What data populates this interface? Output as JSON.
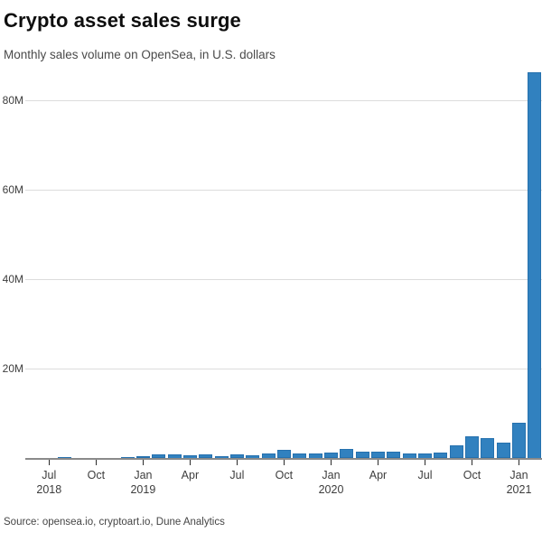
{
  "header": {
    "title": "Crypto asset sales surge",
    "subtitle": "Monthly sales volume on OpenSea, in U.S. dollars"
  },
  "footer": {
    "source": "Source: opensea.io, cryptoart.io, Dune Analytics"
  },
  "colors": {
    "bar_fill": "#3181bf",
    "bar_edge": "#2671ae",
    "gridline": "#dcdcdc",
    "axis_line": "#8a8a8a",
    "text": "#3d3d3d"
  },
  "chart_data": {
    "type": "bar",
    "title": "Crypto asset sales surge",
    "subtitle": "Monthly sales volume on OpenSea, in U.S. dollars",
    "source": "Source: opensea.io, cryptoart.io, Dune Analytics",
    "unit": "millions of U.S. dollars",
    "grid": true,
    "legend": false,
    "ylim": [
      0,
      88
    ],
    "x": [
      "Jun 2018",
      "Jul 2018",
      "Aug 2018",
      "Sep 2018",
      "Oct 2018",
      "Nov 2018",
      "Dec 2018",
      "Jan 2019",
      "Feb 2019",
      "Mar 2019",
      "Apr 2019",
      "May 2019",
      "Jun 2019",
      "Jul 2019",
      "Aug 2019",
      "Sep 2019",
      "Oct 2019",
      "Nov 2019",
      "Dec 2019",
      "Jan 2020",
      "Feb 2020",
      "Mar 2020",
      "Apr 2020",
      "May 2020",
      "Jun 2020",
      "Jul 2020",
      "Aug 2020",
      "Sep 2020",
      "Oct 2020",
      "Nov 2020",
      "Dec 2020",
      "Jan 2021",
      "Feb 2021"
    ],
    "values": [
      0.05,
      0.1,
      0.25,
      0.08,
      0.1,
      0.12,
      0.4,
      0.45,
      0.85,
      1.0,
      0.7,
      0.85,
      0.6,
      0.85,
      0.7,
      1.1,
      2.0,
      1.1,
      1.2,
      1.4,
      2.1,
      1.5,
      1.6,
      1.5,
      1.2,
      1.2,
      1.35,
      2.9,
      5.0,
      4.5,
      3.5,
      8.0,
      86.3
    ],
    "yticks": [
      {
        "value": 20,
        "label": "20M"
      },
      {
        "value": 40,
        "label": "40M"
      },
      {
        "value": 60,
        "label": "60M"
      },
      {
        "value": 80,
        "label": "80M"
      }
    ],
    "xticks": [
      {
        "index": 1,
        "label": "Jul",
        "year": "2018"
      },
      {
        "index": 4,
        "label": "Oct",
        "year": ""
      },
      {
        "index": 7,
        "label": "Jan",
        "year": "2019"
      },
      {
        "index": 10,
        "label": "Apr",
        "year": ""
      },
      {
        "index": 13,
        "label": "Jul",
        "year": ""
      },
      {
        "index": 16,
        "label": "Oct",
        "year": ""
      },
      {
        "index": 19,
        "label": "Jan",
        "year": "2020"
      },
      {
        "index": 22,
        "label": "Apr",
        "year": ""
      },
      {
        "index": 25,
        "label": "Jul",
        "year": ""
      },
      {
        "index": 28,
        "label": "Oct",
        "year": ""
      },
      {
        "index": 31,
        "label": "Jan",
        "year": "2021"
      }
    ]
  }
}
